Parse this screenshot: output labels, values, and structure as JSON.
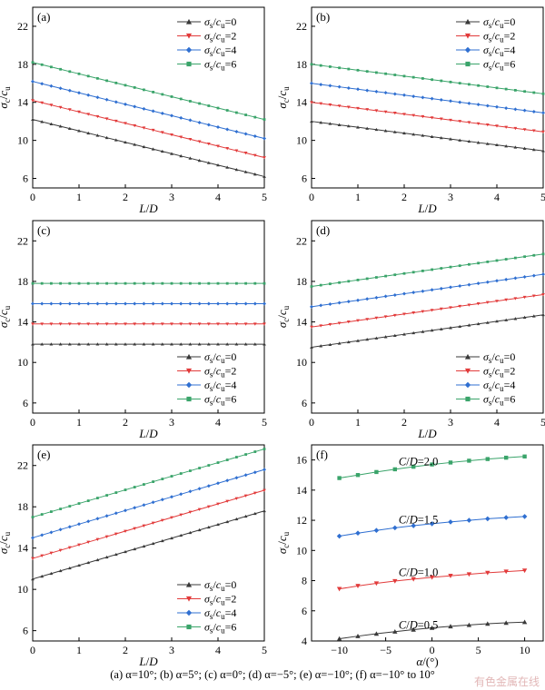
{
  "caption": "(a) α=10°; (b) α=5°; (c) α=0°; (d) α=−5°; (e) α=−10°; (f) α=−10° to 10°",
  "watermark": "有色金属在线",
  "colors": {
    "s0": "#3a3a3a",
    "s2": "#e23b3b",
    "s4": "#2f6fd1",
    "s6": "#3aa46a"
  },
  "chart_data": [
    {
      "panel": "(a)",
      "type": "line",
      "xlabel": "L/D",
      "ylabel": "σc/cu",
      "xlim": [
        0,
        5
      ],
      "ylim": [
        5,
        24
      ],
      "yticks": [
        6,
        10,
        14,
        18,
        22
      ],
      "xticks": [
        0,
        1,
        2,
        3,
        4,
        5
      ],
      "legend_position": "top-right",
      "x": [
        0,
        5
      ],
      "series": [
        {
          "name": "σs/cu=0",
          "marker": "triangle-up",
          "color": "s0",
          "values": [
            12.2,
            6.2
          ]
        },
        {
          "name": "σs/cu=2",
          "marker": "triangle-down",
          "color": "s2",
          "values": [
            14.2,
            8.2
          ]
        },
        {
          "name": "σs/cu=4",
          "marker": "diamond",
          "color": "s4",
          "values": [
            16.2,
            10.2
          ]
        },
        {
          "name": "σs/cu=6",
          "marker": "square",
          "color": "s6",
          "values": [
            18.2,
            12.2
          ]
        }
      ]
    },
    {
      "panel": "(b)",
      "type": "line",
      "xlabel": "L/D",
      "ylabel": "σc/cu",
      "xlim": [
        0,
        5
      ],
      "ylim": [
        5,
        24
      ],
      "yticks": [
        6,
        10,
        14,
        18,
        22
      ],
      "xticks": [
        0,
        1,
        2,
        3,
        4,
        5
      ],
      "legend_position": "top-right",
      "x": [
        0,
        5
      ],
      "series": [
        {
          "name": "σs/cu=0",
          "marker": "triangle-up",
          "color": "s0",
          "values": [
            12.0,
            8.9
          ]
        },
        {
          "name": "σs/cu=2",
          "marker": "triangle-down",
          "color": "s2",
          "values": [
            14.0,
            10.9
          ]
        },
        {
          "name": "σs/cu=4",
          "marker": "diamond",
          "color": "s4",
          "values": [
            16.0,
            12.9
          ]
        },
        {
          "name": "σs/cu=6",
          "marker": "square",
          "color": "s6",
          "values": [
            18.0,
            14.9
          ]
        }
      ]
    },
    {
      "panel": "(c)",
      "type": "line",
      "xlabel": "L/D",
      "ylabel": "σc/cu",
      "xlim": [
        0,
        5
      ],
      "ylim": [
        5,
        24
      ],
      "yticks": [
        6,
        10,
        14,
        18,
        22
      ],
      "xticks": [
        0,
        1,
        2,
        3,
        4,
        5
      ],
      "legend_position": "bottom-right",
      "x": [
        0,
        5
      ],
      "series": [
        {
          "name": "σs/cu=0",
          "marker": "triangle-up",
          "color": "s0",
          "values": [
            11.8,
            11.8
          ]
        },
        {
          "name": "σs/cu=2",
          "marker": "triangle-down",
          "color": "s2",
          "values": [
            13.8,
            13.8
          ]
        },
        {
          "name": "σs/cu=4",
          "marker": "diamond",
          "color": "s4",
          "values": [
            15.8,
            15.8
          ]
        },
        {
          "name": "σs/cu=6",
          "marker": "square",
          "color": "s6",
          "values": [
            17.8,
            17.8
          ]
        }
      ]
    },
    {
      "panel": "(d)",
      "type": "line",
      "xlabel": "L/D",
      "ylabel": "σc/cu",
      "xlim": [
        0,
        5
      ],
      "ylim": [
        5,
        24
      ],
      "yticks": [
        6,
        10,
        14,
        18,
        22
      ],
      "xticks": [
        0,
        1,
        2,
        3,
        4,
        5
      ],
      "legend_position": "bottom-right",
      "x": [
        0,
        5
      ],
      "series": [
        {
          "name": "σs/cu=0",
          "marker": "triangle-up",
          "color": "s0",
          "values": [
            11.5,
            14.7
          ]
        },
        {
          "name": "σs/cu=2",
          "marker": "triangle-down",
          "color": "s2",
          "values": [
            13.5,
            16.7
          ]
        },
        {
          "name": "σs/cu=4",
          "marker": "diamond",
          "color": "s4",
          "values": [
            15.5,
            18.7
          ]
        },
        {
          "name": "σs/cu=6",
          "marker": "square",
          "color": "s6",
          "values": [
            17.5,
            20.7
          ]
        }
      ]
    },
    {
      "panel": "(e)",
      "type": "line",
      "xlabel": "L/D",
      "ylabel": "σc/cu",
      "xlim": [
        0,
        5
      ],
      "ylim": [
        5,
        24
      ],
      "yticks": [
        6,
        10,
        14,
        18,
        22
      ],
      "xticks": [
        0,
        1,
        2,
        3,
        4,
        5
      ],
      "legend_position": "bottom-right",
      "x": [
        0,
        5
      ],
      "series": [
        {
          "name": "σs/cu=0",
          "marker": "triangle-up",
          "color": "s0",
          "values": [
            11.0,
            17.6
          ]
        },
        {
          "name": "σs/cu=2",
          "marker": "triangle-down",
          "color": "s2",
          "values": [
            13.0,
            19.6
          ]
        },
        {
          "name": "σs/cu=4",
          "marker": "diamond",
          "color": "s4",
          "values": [
            15.0,
            21.6
          ]
        },
        {
          "name": "σs/cu=6",
          "marker": "square",
          "color": "s6",
          "values": [
            17.0,
            23.6
          ]
        }
      ]
    },
    {
      "panel": "(f)",
      "type": "line",
      "xlabel": "α/(°)",
      "ylabel": "σc/cu",
      "xlim": [
        -13,
        12
      ],
      "ylim": [
        4,
        17
      ],
      "yticks": [
        4,
        6,
        8,
        10,
        12,
        14,
        16
      ],
      "xticks": [
        -10,
        -5,
        0,
        5,
        10
      ],
      "x": [
        -10,
        -8,
        -6,
        -4,
        -2,
        0,
        2,
        4,
        6,
        8,
        10
      ],
      "series": [
        {
          "label": "C/D=0.5",
          "marker": "triangle-up",
          "color": "s0",
          "values": [
            4.15,
            4.32,
            4.48,
            4.62,
            4.75,
            4.87,
            4.97,
            5.06,
            5.14,
            5.2,
            5.25
          ]
        },
        {
          "label": "C/D=1.0",
          "marker": "triangle-down",
          "color": "s2",
          "values": [
            7.45,
            7.65,
            7.82,
            7.97,
            8.1,
            8.22,
            8.32,
            8.42,
            8.52,
            8.6,
            8.67
          ]
        },
        {
          "label": "C/D=1.5",
          "marker": "diamond",
          "color": "s4",
          "values": [
            10.95,
            11.15,
            11.33,
            11.5,
            11.64,
            11.77,
            11.89,
            12.0,
            12.1,
            12.18,
            12.25
          ]
        },
        {
          "label": "C/D=2.0",
          "marker": "square",
          "color": "s6",
          "values": [
            14.8,
            15.0,
            15.2,
            15.38,
            15.55,
            15.7,
            15.83,
            15.95,
            16.06,
            16.15,
            16.23
          ]
        }
      ]
    }
  ]
}
